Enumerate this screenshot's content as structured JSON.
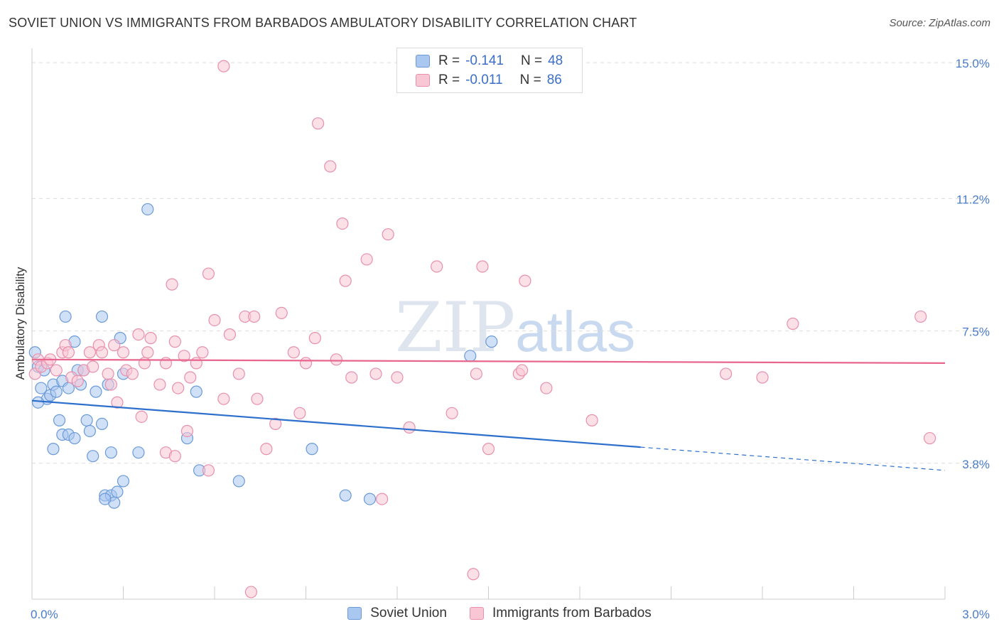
{
  "title": "SOVIET UNION VS IMMIGRANTS FROM BARBADOS AMBULATORY DISABILITY CORRELATION CHART",
  "source": "Source: ZipAtlas.com",
  "watermark": {
    "zip": "ZIP",
    "atlas": "atlas"
  },
  "legend": {
    "rows": [
      {
        "r_label": "R =",
        "r_value": "-0.141",
        "n_label": "N =",
        "n_value": "48",
        "color": "#aac7f0",
        "border": "#6a9ad8"
      },
      {
        "r_label": "R =",
        "r_value": "-0.011",
        "n_label": "N =",
        "n_value": "86",
        "color": "#f9c6d6",
        "border": "#e890ac"
      }
    ]
  },
  "bottom_legend": [
    {
      "label": "Soviet Union",
      "color": "#aac7f0",
      "border": "#6a9ad8"
    },
    {
      "label": "Immigrants from Barbados",
      "color": "#f9c6d6",
      "border": "#e890ac"
    }
  ],
  "chart_data": {
    "type": "scatter",
    "title": "SOVIET UNION VS IMMIGRANTS FROM BARBADOS AMBULATORY DISABILITY CORRELATION CHART",
    "xlabel": "",
    "ylabel": "Ambulatory Disability",
    "xlim": [
      0.0,
      3.0
    ],
    "ylim": [
      0.0,
      15.4
    ],
    "x_tick_labels": [
      "0.0%",
      "3.0%"
    ],
    "y_ticks": [
      3.8,
      7.5,
      11.2,
      15.0
    ],
    "y_tick_labels": [
      "3.8%",
      "7.5%",
      "11.2%",
      "15.0%"
    ],
    "grid": "horizontal dashed",
    "series": [
      {
        "name": "Soviet Union",
        "color": "#6a9ad8",
        "fill": "#aac7f0",
        "trend": {
          "x": [
            0.0,
            2.0
          ],
          "y": [
            5.55,
            4.25
          ],
          "dashed_to": [
            3.0,
            3.6
          ],
          "color": "#2d6fcc"
        },
        "points": [
          [
            0.01,
            6.9
          ],
          [
            0.02,
            6.5
          ],
          [
            0.03,
            5.9
          ],
          [
            0.04,
            6.4
          ],
          [
            0.05,
            5.6
          ],
          [
            0.06,
            5.7
          ],
          [
            0.02,
            5.5
          ],
          [
            0.07,
            6.0
          ],
          [
            0.08,
            5.8
          ],
          [
            0.1,
            6.1
          ],
          [
            0.11,
            7.9
          ],
          [
            0.12,
            5.9
          ],
          [
            0.14,
            7.2
          ],
          [
            0.15,
            6.4
          ],
          [
            0.16,
            6.0
          ],
          [
            0.17,
            6.4
          ],
          [
            0.21,
            5.8
          ],
          [
            0.23,
            7.9
          ],
          [
            0.25,
            6.0
          ],
          [
            0.29,
            7.3
          ],
          [
            0.3,
            6.3
          ],
          [
            0.09,
            5.0
          ],
          [
            0.1,
            4.6
          ],
          [
            0.12,
            4.6
          ],
          [
            0.14,
            4.5
          ],
          [
            0.18,
            5.0
          ],
          [
            0.19,
            4.7
          ],
          [
            0.23,
            4.9
          ],
          [
            0.07,
            4.2
          ],
          [
            0.26,
            4.1
          ],
          [
            0.35,
            4.1
          ],
          [
            0.38,
            10.9
          ],
          [
            0.51,
            4.5
          ],
          [
            0.54,
            5.8
          ],
          [
            0.55,
            3.6
          ],
          [
            0.68,
            3.3
          ],
          [
            0.92,
            4.2
          ],
          [
            1.03,
            2.9
          ],
          [
            1.11,
            2.8
          ],
          [
            1.44,
            6.8
          ],
          [
            1.51,
            7.2
          ],
          [
            0.24,
            2.9
          ],
          [
            0.26,
            2.9
          ],
          [
            0.27,
            2.7
          ],
          [
            0.28,
            3.0
          ],
          [
            0.3,
            3.3
          ],
          [
            0.24,
            2.8
          ],
          [
            0.2,
            4.0
          ]
        ]
      },
      {
        "name": "Immigrants from Barbados",
        "color": "#e890ac",
        "fill": "#f9c6d6",
        "trend": {
          "x": [
            0.0,
            3.0
          ],
          "y": [
            6.7,
            6.6
          ],
          "color": "#e8668e"
        },
        "points": [
          [
            0.01,
            6.3
          ],
          [
            0.02,
            6.7
          ],
          [
            0.03,
            6.5
          ],
          [
            0.05,
            6.6
          ],
          [
            0.06,
            6.7
          ],
          [
            0.08,
            6.4
          ],
          [
            0.1,
            6.9
          ],
          [
            0.11,
            7.1
          ],
          [
            0.12,
            6.9
          ],
          [
            0.13,
            6.2
          ],
          [
            0.15,
            6.1
          ],
          [
            0.17,
            6.4
          ],
          [
            0.19,
            6.9
          ],
          [
            0.2,
            6.5
          ],
          [
            0.22,
            7.1
          ],
          [
            0.23,
            6.9
          ],
          [
            0.25,
            6.3
          ],
          [
            0.26,
            6.0
          ],
          [
            0.27,
            7.1
          ],
          [
            0.28,
            5.5
          ],
          [
            0.3,
            6.9
          ],
          [
            0.31,
            6.4
          ],
          [
            0.33,
            6.3
          ],
          [
            0.35,
            7.4
          ],
          [
            0.37,
            6.6
          ],
          [
            0.38,
            6.9
          ],
          [
            0.39,
            7.3
          ],
          [
            0.42,
            6.0
          ],
          [
            0.44,
            6.6
          ],
          [
            0.46,
            8.8
          ],
          [
            0.47,
            7.2
          ],
          [
            0.48,
            5.9
          ],
          [
            0.5,
            6.8
          ],
          [
            0.51,
            4.7
          ],
          [
            0.52,
            6.2
          ],
          [
            0.54,
            6.6
          ],
          [
            0.56,
            6.9
          ],
          [
            0.58,
            9.1
          ],
          [
            0.6,
            7.8
          ],
          [
            0.63,
            5.6
          ],
          [
            0.65,
            7.4
          ],
          [
            0.68,
            6.3
          ],
          [
            0.7,
            7.9
          ],
          [
            0.73,
            7.9
          ],
          [
            0.74,
            5.6
          ],
          [
            0.77,
            4.2
          ],
          [
            0.8,
            4.9
          ],
          [
            0.82,
            8.0
          ],
          [
            0.86,
            6.9
          ],
          [
            0.88,
            5.2
          ],
          [
            0.9,
            6.6
          ],
          [
            0.93,
            7.3
          ],
          [
            0.94,
            13.3
          ],
          [
            0.98,
            12.1
          ],
          [
            1.0,
            6.7
          ],
          [
            1.02,
            10.5
          ],
          [
            1.03,
            8.9
          ],
          [
            1.05,
            6.2
          ],
          [
            1.1,
            9.5
          ],
          [
            1.13,
            6.3
          ],
          [
            1.17,
            10.2
          ],
          [
            1.2,
            6.2
          ],
          [
            1.24,
            4.8
          ],
          [
            1.33,
            9.3
          ],
          [
            1.38,
            5.2
          ],
          [
            1.46,
            6.3
          ],
          [
            1.48,
            9.3
          ],
          [
            1.5,
            4.2
          ],
          [
            1.6,
            6.3
          ],
          [
            1.61,
            6.4
          ],
          [
            1.62,
            8.9
          ],
          [
            1.69,
            5.9
          ],
          [
            1.84,
            5.0
          ],
          [
            2.28,
            6.3
          ],
          [
            2.4,
            6.2
          ],
          [
            2.5,
            7.7
          ],
          [
            2.92,
            7.9
          ],
          [
            2.95,
            4.5
          ],
          [
            0.58,
            3.6
          ],
          [
            0.63,
            14.9
          ],
          [
            0.44,
            4.1
          ],
          [
            0.47,
            4.0
          ],
          [
            1.15,
            2.8
          ],
          [
            1.45,
            0.7
          ],
          [
            0.72,
            0.2
          ],
          [
            0.36,
            5.1
          ]
        ]
      }
    ]
  }
}
